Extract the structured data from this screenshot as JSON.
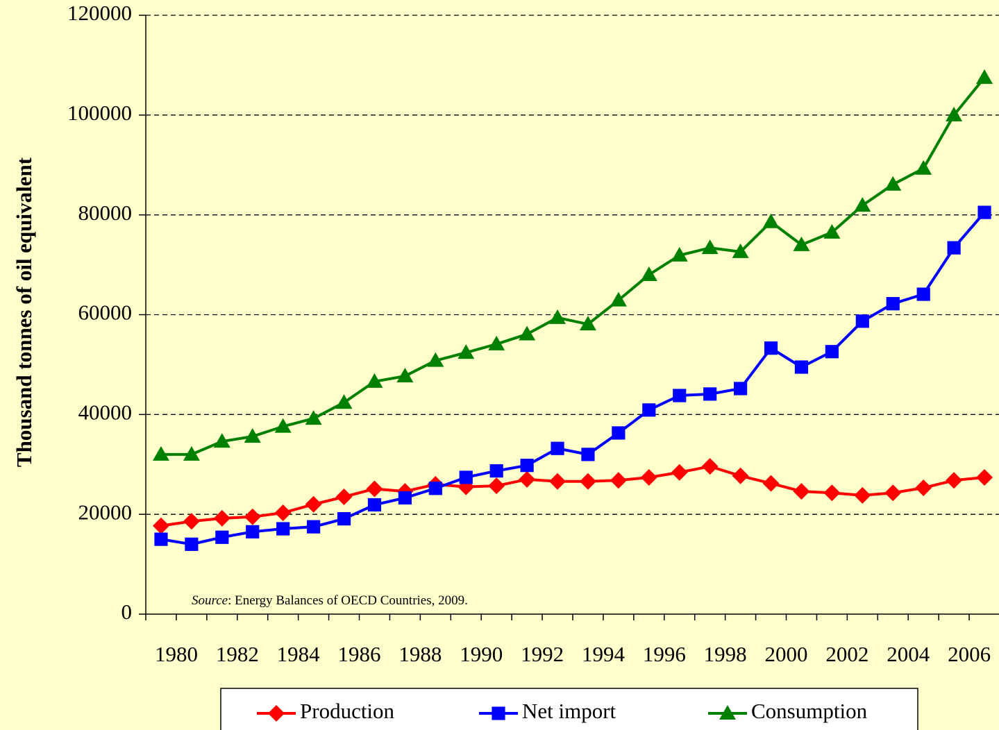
{
  "chart_data": {
    "type": "line",
    "y_label": "Thousand tonnes of oil equivalent",
    "source_label": "Source",
    "source_text": ":  Energy Balances of OECD Countries, 2009.",
    "categories": [
      "1980",
      null,
      "1982",
      null,
      "1984",
      null,
      "1986",
      null,
      "1988",
      null,
      "1990",
      null,
      "1992",
      null,
      "1994",
      null,
      "1996",
      null,
      "1998",
      null,
      "2000",
      null,
      "2002",
      null,
      "2004",
      null,
      "2006",
      null
    ],
    "series": [
      {
        "name": "Production",
        "color": "#ff0000",
        "marker": "diamond",
        "values": [
          17700,
          18600,
          19200,
          19500,
          20300,
          22000,
          23500,
          25100,
          24600,
          26000,
          25500,
          25700,
          27000,
          26600,
          26600,
          26800,
          27400,
          28400,
          29600,
          27700,
          26200,
          24600,
          24300,
          23800,
          24300,
          25300,
          26800,
          27400
        ]
      },
      {
        "name": "Net import",
        "color": "#0000ff",
        "marker": "square",
        "values": [
          15000,
          14000,
          15400,
          16500,
          17100,
          17500,
          19100,
          21900,
          23300,
          25200,
          27400,
          28700,
          29800,
          33200,
          32000,
          36300,
          40900,
          43800,
          44100,
          45200,
          53300,
          49500,
          52600,
          58700,
          62200,
          64100,
          73400,
          80500
        ]
      },
      {
        "name": "Consumption",
        "color": "#008000",
        "marker": "triangle",
        "values": [
          32000,
          32000,
          34600,
          35600,
          37600,
          39200,
          42400,
          46600,
          47700,
          50800,
          52400,
          54100,
          56100,
          59400,
          58100,
          62900,
          68000,
          71900,
          73400,
          72600,
          78600,
          74000,
          76500,
          81900,
          86100,
          89300,
          100000,
          107500
        ]
      }
    ],
    "ylim": [
      0,
      120000
    ],
    "yticks": [
      0,
      20000,
      40000,
      60000,
      80000,
      100000,
      120000
    ],
    "grid": true
  }
}
